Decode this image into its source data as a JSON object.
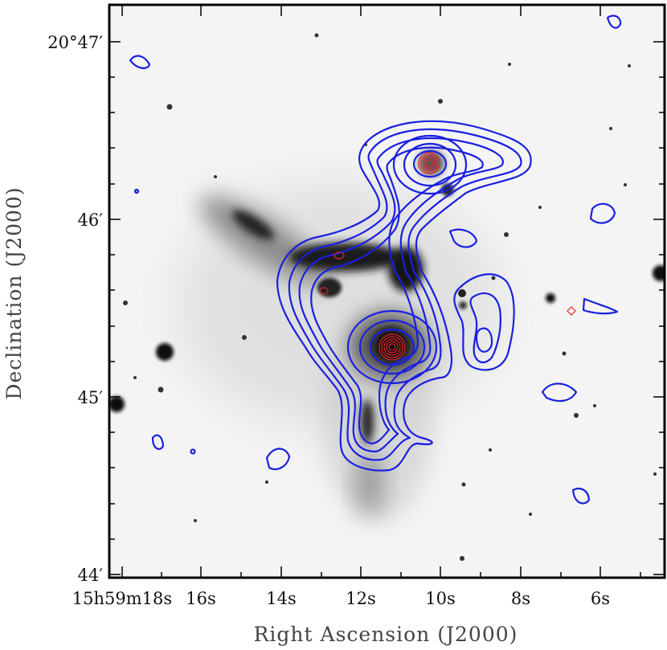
{
  "axes": {
    "xlabel": "Right Ascension (J2000)",
    "ylabel": "Declination (J2000)",
    "x_ticks": [
      {
        "id": "ra-18",
        "label": "15h59m18s"
      },
      {
        "id": "ra-16",
        "label": "16s"
      },
      {
        "id": "ra-14",
        "label": "14s"
      },
      {
        "id": "ra-12",
        "label": "12s"
      },
      {
        "id": "ra-10",
        "label": "10s"
      },
      {
        "id": "ra-8",
        "label": "8s"
      },
      {
        "id": "ra-6",
        "label": "6s"
      }
    ],
    "y_ticks": [
      {
        "id": "dec-4700",
        "label": "20°47′"
      },
      {
        "id": "dec-4600",
        "label": "46′"
      },
      {
        "id": "dec-4500",
        "label": "45′"
      },
      {
        "id": "dec-4400",
        "label": "44′"
      }
    ]
  },
  "colors": {
    "blue_contours": "#1a1fe0",
    "red_contours": "#e8242a",
    "background_sky": "#f4f4f4",
    "frame": "#000000"
  }
}
